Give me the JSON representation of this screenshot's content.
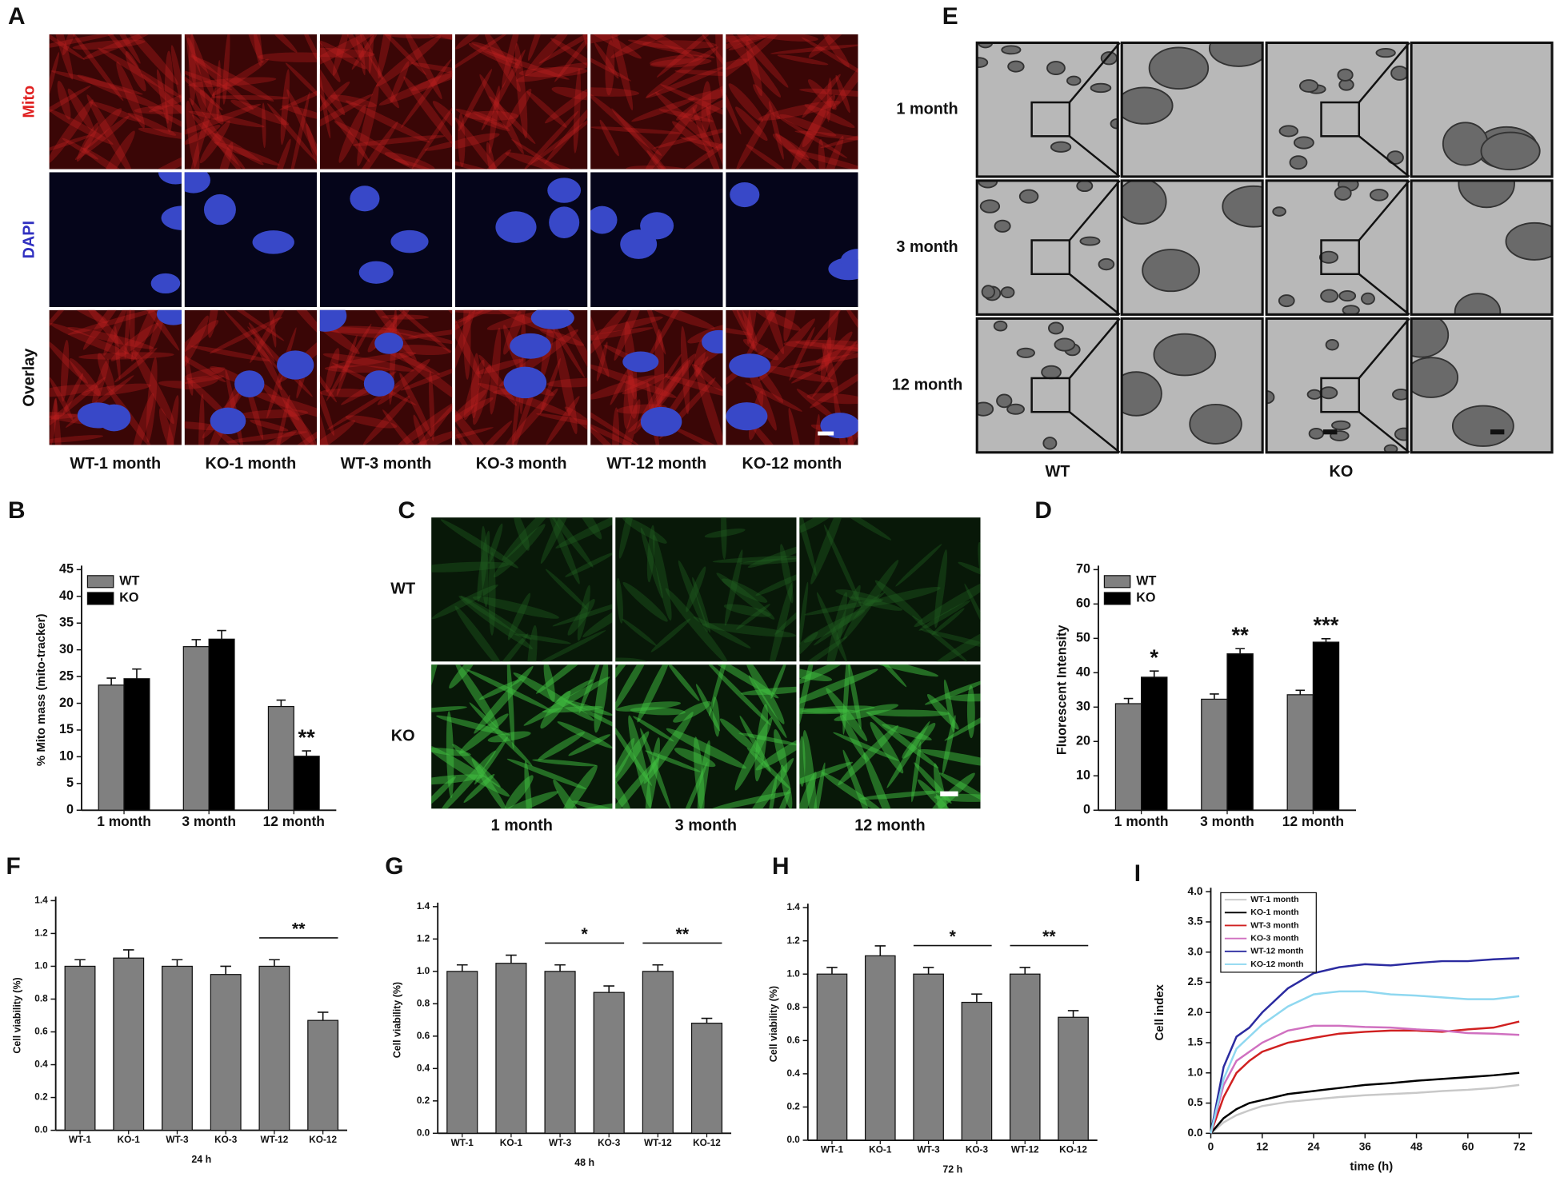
{
  "panels": {
    "A": {
      "letter": "A",
      "rows": [
        "Mito",
        "DAPI",
        "Overlay"
      ],
      "columns": [
        "WT-1 month",
        "KO-1 month",
        "WT-3 month",
        "KO-3 month",
        "WT-12 month",
        "KO-12 month"
      ]
    },
    "C": {
      "letter": "C",
      "rows": [
        "WT",
        "KO"
      ],
      "columns": [
        "1 month",
        "3 month",
        "12 month"
      ]
    },
    "E": {
      "letter": "E",
      "rows": [
        "1 month",
        "3 month",
        "12 month"
      ],
      "columns": [
        "WT",
        "KO"
      ]
    }
  },
  "chart_data": [
    {
      "panel": "B",
      "type": "bar",
      "ylabel": "% Mito mass (mito-tracker)",
      "categories": [
        "1 month",
        "3 month",
        "12 month"
      ],
      "series": [
        {
          "name": "WT",
          "color": "#808080",
          "values": [
            23.4,
            30.6,
            19.4
          ],
          "errors": [
            1.3,
            1.3,
            1.2
          ]
        },
        {
          "name": "KO",
          "color": "#000000",
          "values": [
            24.6,
            32.0,
            10.1
          ],
          "errors": [
            1.8,
            1.6,
            1.0
          ]
        }
      ],
      "annotations": [
        "**"
      ],
      "ylim": [
        0,
        45
      ],
      "yticks": [
        0,
        5,
        10,
        15,
        20,
        25,
        30,
        35,
        40,
        45
      ],
      "legend": "upper left"
    },
    {
      "panel": "D",
      "type": "bar",
      "ylabel": "Fluorescent Intensity",
      "categories": [
        "1 month",
        "3 month",
        "12 month"
      ],
      "series": [
        {
          "name": "WT",
          "color": "#808080",
          "values": [
            31.0,
            32.3,
            33.6
          ],
          "errors": [
            1.5,
            1.5,
            1.3
          ]
        },
        {
          "name": "KO",
          "color": "#000000",
          "values": [
            38.7,
            45.5,
            48.9
          ],
          "errors": [
            1.8,
            1.5,
            1.0
          ]
        }
      ],
      "annotations": [
        "*",
        "**",
        "***"
      ],
      "ylim": [
        0,
        70
      ],
      "yticks": [
        0,
        10,
        20,
        30,
        40,
        50,
        60,
        70
      ],
      "legend": "upper left"
    },
    {
      "panel": "F",
      "type": "bar",
      "ylabel": "Cell viability (%)",
      "xlabel": "24 h",
      "categories": [
        "WT-1",
        "KO-1",
        "WT-3",
        "KO-3",
        "WT-12",
        "KO-12"
      ],
      "values": [
        1.0,
        1.05,
        1.0,
        0.95,
        1.0,
        0.67
      ],
      "errors": [
        0.04,
        0.05,
        0.04,
        0.05,
        0.04,
        0.05
      ],
      "color": "#808080",
      "annotations": [
        "**"
      ],
      "ylim": [
        0,
        1.4
      ],
      "yticks": [
        {
          "value": 0,
          "label": "0.0"
        },
        0.2,
        0.4,
        0.6,
        0.8,
        {
          "value": 1,
          "label": "1.0"
        },
        1.2,
        1.4
      ]
    },
    {
      "panel": "G",
      "type": "bar",
      "ylabel": "Cell viability (%)",
      "xlabel": "48 h",
      "categories": [
        "WT-1",
        "KO-1",
        "WT-3",
        "KO-3",
        "WT-12",
        "KO-12"
      ],
      "values": [
        1.0,
        1.05,
        1.0,
        0.87,
        1.0,
        0.68
      ],
      "errors": [
        0.04,
        0.05,
        0.04,
        0.04,
        0.04,
        0.03
      ],
      "color": "#808080",
      "annotations": [
        "*",
        "**"
      ],
      "ylim": [
        0,
        1.4
      ],
      "yticks": [
        {
          "value": 0,
          "label": "0.0"
        },
        0.2,
        0.4,
        0.6,
        0.8,
        {
          "value": 1,
          "label": "1.0"
        },
        1.2,
        1.4
      ]
    },
    {
      "panel": "H",
      "type": "bar",
      "ylabel": "Cell viability (%)",
      "xlabel": "72 h",
      "categories": [
        "WT-1",
        "KO-1",
        "WT-3",
        "KO-3",
        "WT-12",
        "KO-12"
      ],
      "values": [
        1.0,
        1.11,
        1.0,
        0.83,
        1.0,
        0.74
      ],
      "errors": [
        0.04,
        0.06,
        0.04,
        0.05,
        0.04,
        0.04
      ],
      "color": "#808080",
      "annotations": [
        "*",
        "**"
      ],
      "ylim": [
        0,
        1.4
      ],
      "yticks": [
        {
          "value": 0,
          "label": "0.0"
        },
        0.2,
        0.4,
        0.6,
        0.8,
        {
          "value": 1,
          "label": "1.0"
        },
        1.2,
        1.4
      ]
    },
    {
      "panel": "I",
      "type": "line",
      "ylabel": "Cell index",
      "xlabel": "time (h)",
      "x": [
        0,
        3,
        6,
        9,
        12,
        18,
        24,
        30,
        36,
        42,
        48,
        54,
        60,
        66,
        72
      ],
      "series": [
        {
          "name": "WT-1 month",
          "color": "#c8c8c8",
          "values": [
            0,
            0.18,
            0.3,
            0.38,
            0.45,
            0.52,
            0.56,
            0.6,
            0.63,
            0.65,
            0.67,
            0.7,
            0.72,
            0.75,
            0.8
          ]
        },
        {
          "name": "KO-1 month",
          "color": "#000000",
          "values": [
            0,
            0.25,
            0.4,
            0.5,
            0.55,
            0.65,
            0.7,
            0.75,
            0.8,
            0.83,
            0.87,
            0.9,
            0.93,
            0.96,
            1.0
          ]
        },
        {
          "name": "WT-3 month",
          "color": "#d02020",
          "values": [
            0,
            0.6,
            1.0,
            1.2,
            1.35,
            1.5,
            1.58,
            1.65,
            1.68,
            1.7,
            1.7,
            1.68,
            1.72,
            1.75,
            1.85
          ]
        },
        {
          "name": "KO-3 month",
          "color": "#d070c0",
          "values": [
            0,
            0.8,
            1.2,
            1.35,
            1.5,
            1.7,
            1.78,
            1.78,
            1.76,
            1.75,
            1.72,
            1.7,
            1.66,
            1.65,
            1.63
          ]
        },
        {
          "name": "WT-12 month",
          "color": "#2b2ba0",
          "values": [
            0,
            1.1,
            1.6,
            1.75,
            2.0,
            2.4,
            2.65,
            2.75,
            2.8,
            2.78,
            2.82,
            2.85,
            2.85,
            2.88,
            2.9
          ]
        },
        {
          "name": "KO-12 month",
          "color": "#8fd8f0",
          "values": [
            0,
            0.9,
            1.4,
            1.6,
            1.8,
            2.1,
            2.3,
            2.35,
            2.35,
            2.3,
            2.28,
            2.25,
            2.22,
            2.22,
            2.27
          ]
        }
      ],
      "xlim": [
        0,
        75
      ],
      "xticks": [
        0,
        12,
        24,
        36,
        48,
        60,
        72
      ],
      "ylim": [
        0,
        4
      ],
      "yticks": [
        {
          "value": 0,
          "label": "0.0"
        },
        0.5,
        {
          "value": 1,
          "label": "1.0"
        },
        1.5,
        {
          "value": 2,
          "label": "2.0"
        },
        2.5,
        {
          "value": 3,
          "label": "3.0"
        },
        3.5,
        {
          "value": 4,
          "label": "4.0"
        }
      ],
      "legend": "upper left"
    }
  ]
}
